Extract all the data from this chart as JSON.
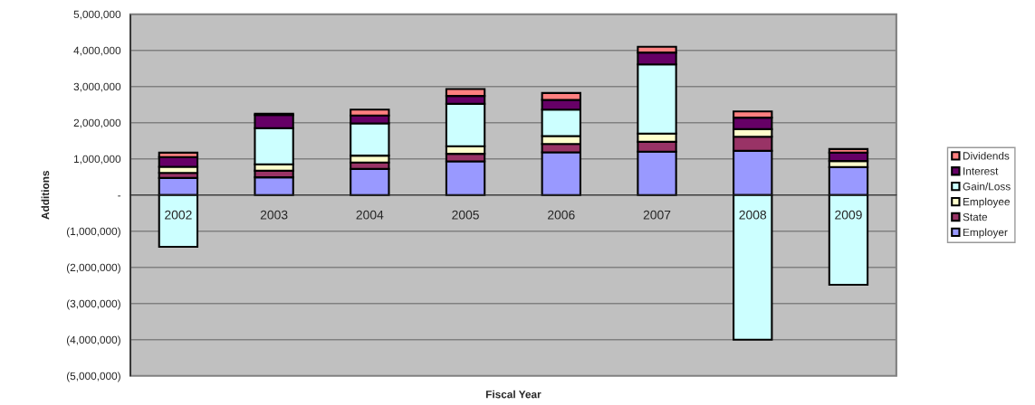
{
  "chart_data": {
    "type": "bar",
    "stacked": true,
    "xlabel": "Fiscal Year",
    "ylabel": "Additions",
    "categories": [
      "2002",
      "2003",
      "2004",
      "2005",
      "2006",
      "2007",
      "2008",
      "2009"
    ],
    "series": [
      {
        "name": "Employer",
        "color": "#9999ff",
        "values": [
          470000,
          490000,
          720000,
          930000,
          1180000,
          1200000,
          1220000,
          770000
        ]
      },
      {
        "name": "State",
        "color": "#993366",
        "values": [
          140000,
          180000,
          180000,
          210000,
          230000,
          270000,
          390000,
          null
        ]
      },
      {
        "name": "Employee",
        "color": "#ffffcc",
        "values": [
          170000,
          180000,
          190000,
          210000,
          220000,
          230000,
          210000,
          170000
        ]
      },
      {
        "name": "Gain/Loss",
        "color": "#ccffff",
        "values": [
          -1430000,
          1000000,
          890000,
          1170000,
          730000,
          1910000,
          -4000000,
          -2480000
        ]
      },
      {
        "name": "Interest",
        "color": "#660066",
        "values": [
          270000,
          360000,
          220000,
          220000,
          270000,
          330000,
          320000,
          230000
        ]
      },
      {
        "name": "Dividends",
        "color": "#ff8080",
        "values": [
          120000,
          40000,
          160000,
          190000,
          190000,
          160000,
          170000,
          100000
        ]
      }
    ],
    "ylim": [
      -5000000,
      5000000
    ],
    "yticks": [
      {
        "value": 5000000,
        "label": "5,000,000"
      },
      {
        "value": 4000000,
        "label": "4,000,000"
      },
      {
        "value": 3000000,
        "label": "3,000,000"
      },
      {
        "value": 2000000,
        "label": "2,000,000"
      },
      {
        "value": 1000000,
        "label": "1,000,000"
      },
      {
        "value": 0,
        "label": "-"
      },
      {
        "value": -1000000,
        "label": "(1,000,000)"
      },
      {
        "value": -2000000,
        "label": "(2,000,000)"
      },
      {
        "value": -3000000,
        "label": "(3,000,000)"
      },
      {
        "value": -4000000,
        "label": "(4,000,000)"
      },
      {
        "value": -5000000,
        "label": "(5,000,000)"
      }
    ],
    "grid": "y",
    "legend": "right"
  }
}
